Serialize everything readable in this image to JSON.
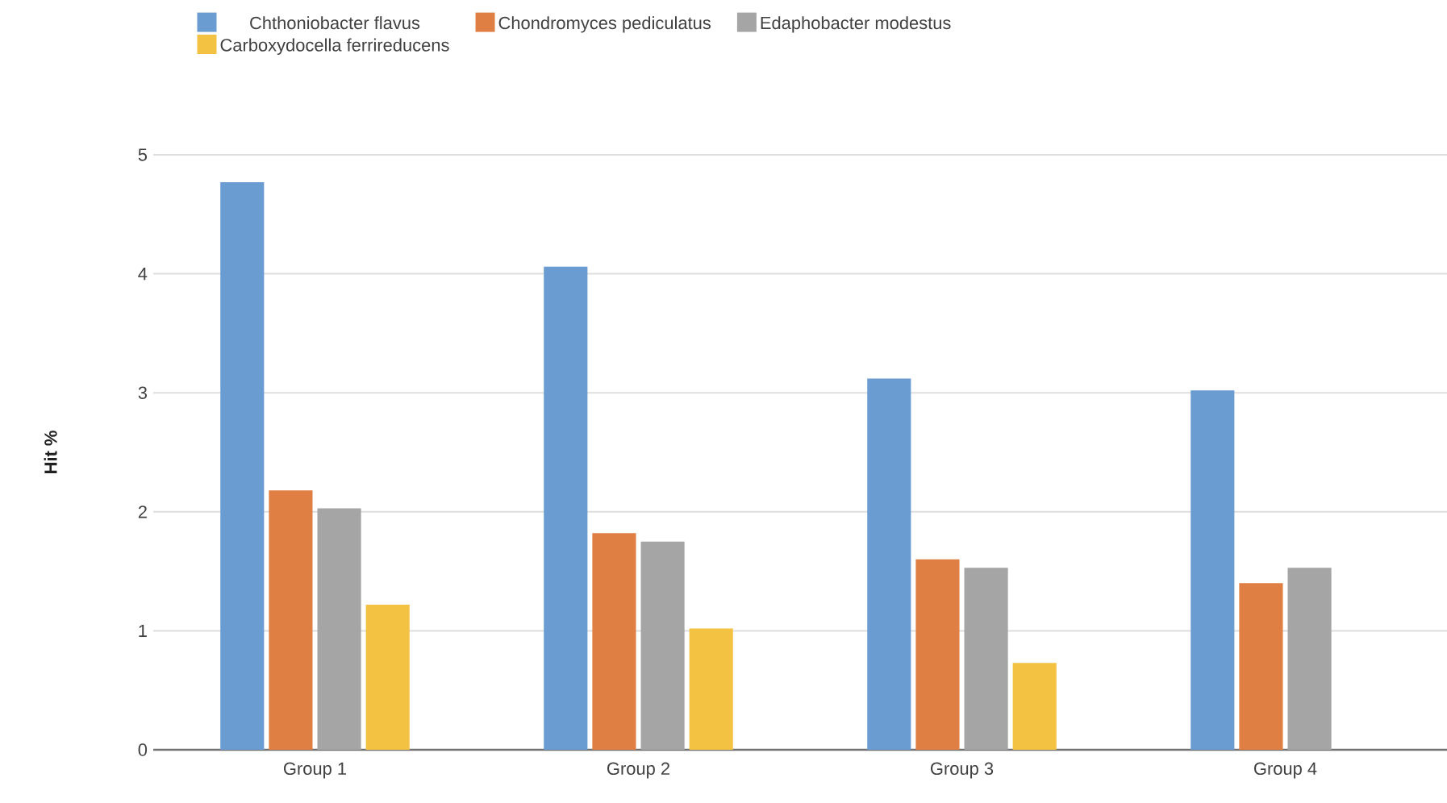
{
  "chart_data": {
    "type": "bar",
    "ylabel": "Hit %",
    "categories": [
      "Group 1",
      "Group 2",
      "Group 3",
      "Group 4"
    ],
    "series": [
      {
        "name": "Chthoniobacter flavus",
        "color": "#6a9bd1",
        "values": [
          4.77,
          4.06,
          3.12,
          3.02
        ]
      },
      {
        "name": "Chondromyces pediculatus",
        "color": "#e07f43",
        "values": [
          2.18,
          1.82,
          1.6,
          1.4
        ]
      },
      {
        "name": "Edaphobacter modestus",
        "color": "#a5a5a5",
        "values": [
          2.03,
          1.75,
          1.53,
          1.53
        ]
      },
      {
        "name": "Carboxydocella ferrireducens",
        "color": "#f4c242",
        "values": [
          1.22,
          1.02,
          0.73,
          null
        ]
      }
    ],
    "ylim": [
      0,
      5
    ],
    "yticks": [
      0,
      1,
      2,
      3,
      4,
      5
    ],
    "grid": "y",
    "legend": "top"
  }
}
